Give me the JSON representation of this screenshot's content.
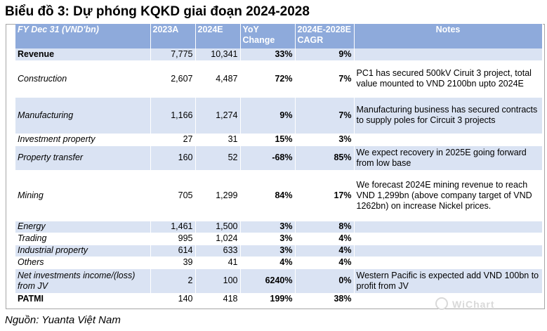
{
  "title": "Biểu đồ 3: Dự phóng KQKD giai đoạn 2024-2028",
  "headers": [
    "FY Dec 31 (VND'bn)",
    "2023A",
    "2024E",
    "YoY Change",
    "2024E-2028E CAGR",
    "Notes"
  ],
  "rows": [
    {
      "label": "Revenue",
      "v2023": "7,775",
      "v2024": "10,341",
      "yoy": "33%",
      "cagr": "9%",
      "note": "",
      "bold": true
    },
    {
      "label": "Construction",
      "v2023": "2,607",
      "v2024": "4,487",
      "yoy": "72%",
      "cagr": "7%",
      "note": "PC1 has secured 500kV Ciruit 3 project, total value mounted to VND 2100bn upto 2024E"
    },
    {
      "label": "Manufacturing",
      "v2023": "1,166",
      "v2024": "1,274",
      "yoy": "9%",
      "cagr": "7%",
      "note": "Manufacturing business has secured contracts to supply poles for Circuit 3 projects"
    },
    {
      "label": "Investment property",
      "v2023": "27",
      "v2024": "31",
      "yoy": "15%",
      "cagr": "3%",
      "note": ""
    },
    {
      "label": "Property transfer",
      "v2023": "160",
      "v2024": "52",
      "yoy": "-68%",
      "cagr": "85%",
      "note": "We expect recovery in 2025E going forward from low base"
    },
    {
      "label": "Mining",
      "v2023": "705",
      "v2024": "1,299",
      "yoy": "84%",
      "cagr": "17%",
      "note": " We forecast 2024E mining revenue to reach VND 1,299bn (above company target of VND 1262bn) on increase Nickel prices."
    },
    {
      "label": "Energy",
      "v2023": "1,461",
      "v2024": "1,500",
      "yoy": "3%",
      "cagr": "8%",
      "note": ""
    },
    {
      "label": "Trading",
      "v2023": "995",
      "v2024": "1,024",
      "yoy": "3%",
      "cagr": "4%",
      "note": ""
    },
    {
      "label": "Industrial property",
      "v2023": "614",
      "v2024": "633",
      "yoy": "3%",
      "cagr": "4%",
      "note": ""
    },
    {
      "label": "Others",
      "v2023": "39",
      "v2024": "41",
      "yoy": "4%",
      "cagr": "4%",
      "note": ""
    },
    {
      "label": "Net investments income/(loss) from JV",
      "v2023": "2",
      "v2024": "100",
      "yoy": "6240%",
      "cagr": "0%",
      "note": "Western Pacific is expected add VND 100bn to profit from JV"
    },
    {
      "label": "PATMI",
      "v2023": "140",
      "v2024": "418",
      "yoy": "199%",
      "cagr": "38%",
      "note": "",
      "bold": true
    }
  ],
  "watermark": "WiChart",
  "source": "Nguồn: Yuanta Việt Nam"
}
